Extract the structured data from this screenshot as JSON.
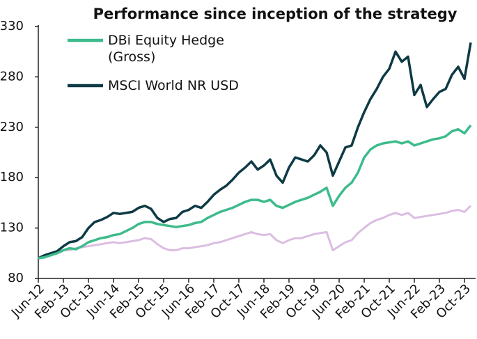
{
  "chart_data": {
    "type": "line",
    "title": "Performance since inception of the strategy",
    "categories": [
      "Jun-12",
      null,
      null,
      null,
      "Feb-13",
      null,
      null,
      null,
      "Oct-13",
      null,
      null,
      null,
      "Jun-14",
      null,
      null,
      null,
      "Feb-15",
      null,
      null,
      null,
      "Oct-15",
      null,
      null,
      null,
      "Jun-16",
      null,
      null,
      null,
      "Feb-17",
      null,
      null,
      null,
      "Oct-17",
      null,
      null,
      null,
      "Jun-18",
      null,
      null,
      null,
      "Feb-19",
      null,
      null,
      null,
      "Oct-19",
      null,
      null,
      null,
      "Jun-20",
      null,
      null,
      null,
      "Feb-21",
      null,
      null,
      null,
      "Oct-21",
      null,
      null,
      null,
      "Jun-22",
      null,
      null,
      null,
      "Feb-23",
      null,
      null,
      null,
      "Oct-23",
      null
    ],
    "series": [
      {
        "name": "DBi Equity Hedge (Gross)",
        "color": "#3dbb8b",
        "values": [
          100,
          101,
          103,
          105,
          108,
          110,
          109,
          112,
          116,
          118,
          120,
          121,
          123,
          124,
          127,
          130,
          134,
          136,
          136,
          134,
          133,
          132,
          131,
          132,
          133,
          135,
          136,
          140,
          143,
          146,
          148,
          150,
          153,
          156,
          158,
          158,
          156,
          158,
          152,
          150,
          153,
          156,
          158,
          160,
          163,
          166,
          170,
          152,
          162,
          170,
          175,
          185,
          200,
          208,
          212,
          214,
          215,
          216,
          214,
          216,
          212,
          214,
          216,
          218,
          219,
          221,
          226,
          228,
          224,
          232
        ]
      },
      {
        "name": "MSCI World NR USD",
        "color": "#0e3a45",
        "values": [
          100,
          103,
          105,
          107,
          112,
          116,
          117,
          121,
          130,
          136,
          138,
          141,
          145,
          144,
          145,
          146,
          150,
          152,
          149,
          140,
          136,
          139,
          140,
          146,
          148,
          152,
          150,
          156,
          163,
          168,
          172,
          178,
          185,
          190,
          196,
          188,
          192,
          198,
          182,
          175,
          190,
          200,
          198,
          196,
          202,
          212,
          205,
          182,
          196,
          210,
          212,
          230,
          245,
          258,
          268,
          280,
          288,
          305,
          295,
          300,
          262,
          272,
          250,
          258,
          265,
          268,
          282,
          290,
          278,
          314
        ]
      },
      {
        "color": "#dcbde2",
        "values": [
          100,
          101,
          104,
          106,
          108,
          108,
          110,
          111,
          112,
          113,
          114,
          115,
          116,
          115,
          116,
          117,
          118,
          120,
          119,
          114,
          110,
          108,
          108,
          110,
          110,
          111,
          112,
          113,
          115,
          116,
          118,
          120,
          122,
          124,
          126,
          124,
          123,
          124,
          118,
          115,
          118,
          120,
          120,
          122,
          124,
          125,
          126,
          108,
          112,
          116,
          118,
          125,
          130,
          135,
          138,
          140,
          143,
          145,
          143,
          145,
          140,
          141,
          142,
          143,
          144,
          145,
          147,
          148,
          146,
          152
        ]
      }
    ],
    "ylim": [
      80,
      330
    ],
    "yticks": [
      80,
      130,
      180,
      230,
      280,
      330
    ],
    "grid": false
  }
}
